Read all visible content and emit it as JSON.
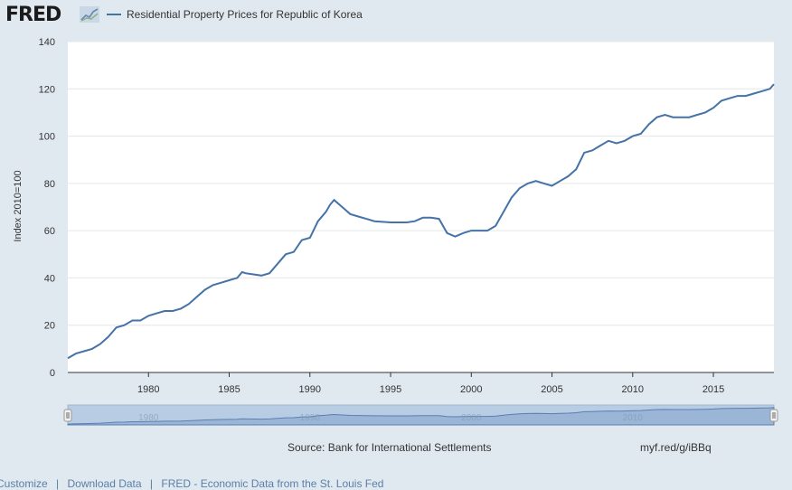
{
  "header": {
    "logo_text": "FRED",
    "legend_label": "Residential Property Prices for Republic of Korea",
    "series_color": "#4572a7"
  },
  "chart_data": {
    "type": "line",
    "title": "",
    "xlabel": "",
    "ylabel": "Index 2010=100",
    "xlim": [
      1975,
      2018.75
    ],
    "ylim": [
      0,
      140
    ],
    "y_ticks": [
      0,
      20,
      40,
      60,
      80,
      100,
      120,
      140
    ],
    "x_ticks": [
      1980,
      1985,
      1990,
      1995,
      2000,
      2005,
      2010,
      2015
    ],
    "grid": true,
    "legend": "top-left",
    "series": [
      {
        "name": "Residential Property Prices for Republic of Korea",
        "x": [
          1975.0,
          1975.5,
          1976.0,
          1976.5,
          1977.0,
          1977.5,
          1978.0,
          1978.5,
          1979.0,
          1979.5,
          1980.0,
          1980.5,
          1981.0,
          1981.5,
          1982.0,
          1982.5,
          1983.0,
          1983.5,
          1984.0,
          1984.5,
          1985.0,
          1985.5,
          1985.8,
          1986.0,
          1986.5,
          1987.0,
          1987.5,
          1988.0,
          1988.5,
          1989.0,
          1989.5,
          1990.0,
          1990.5,
          1991.0,
          1991.25,
          1991.5,
          1992.0,
          1992.5,
          1993.0,
          1993.5,
          1994.0,
          1995.0,
          1996.0,
          1996.5,
          1997.0,
          1997.5,
          1998.0,
          1998.5,
          1999.0,
          1999.5,
          2000.0,
          2000.5,
          2001.0,
          2001.5,
          2002.0,
          2002.5,
          2003.0,
          2003.5,
          2004.0,
          2004.5,
          2005.0,
          2005.5,
          2006.0,
          2006.5,
          2007.0,
          2007.5,
          2008.0,
          2008.5,
          2009.0,
          2009.5,
          2010.0,
          2010.5,
          2011.0,
          2011.5,
          2012.0,
          2012.5,
          2013.0,
          2013.5,
          2014.0,
          2014.5,
          2015.0,
          2015.5,
          2016.0,
          2016.5,
          2017.0,
          2017.5,
          2018.0,
          2018.5,
          2018.75
        ],
        "values": [
          6,
          8,
          9,
          10,
          12,
          15,
          19,
          20,
          22,
          22,
          24,
          25,
          26,
          26,
          27,
          29,
          32,
          35,
          37,
          38,
          39,
          40,
          42.5,
          42,
          41.5,
          41,
          42,
          46,
          50,
          51,
          56,
          57,
          64,
          68,
          71,
          73,
          70,
          67,
          66,
          65,
          64,
          63.5,
          63.5,
          64,
          65.5,
          65.5,
          65,
          59,
          57.5,
          59,
          60,
          60,
          60,
          62,
          68,
          74,
          78,
          80,
          81,
          80,
          79,
          81,
          83,
          86,
          93,
          94,
          96,
          98,
          97,
          98,
          100,
          101,
          105,
          108,
          109,
          108,
          108,
          108,
          109,
          110,
          112,
          115,
          116,
          117,
          117,
          118,
          119,
          120,
          122
        ]
      }
    ]
  },
  "navigator": {
    "x_labels": [
      "1980",
      "1990",
      "2000",
      "2010"
    ]
  },
  "footer": {
    "source": "Source: Bank for International Settlements",
    "short_url": "myf.red/g/iBBq",
    "links": [
      "Customize",
      "|",
      "Download Data",
      "|",
      "FRED - Economic Data from the St. Louis Fed"
    ]
  }
}
